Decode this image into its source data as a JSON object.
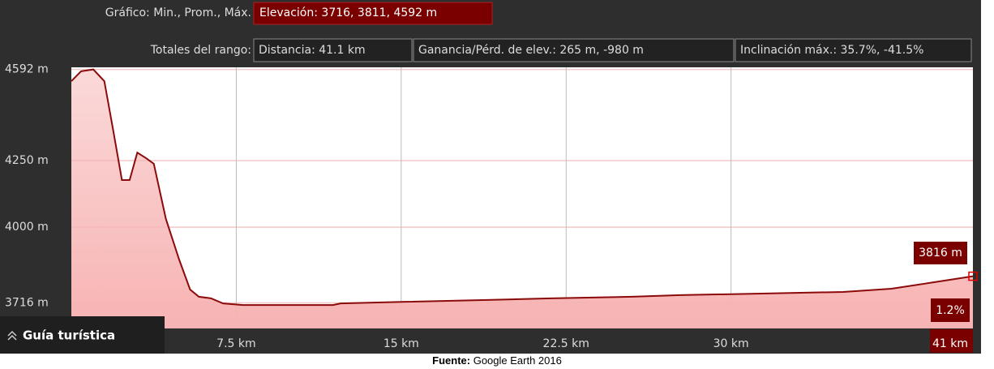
{
  "header": {
    "graph_label": "Gráfico: Min., Prom., Máx.",
    "elevation": "Elevación: 3716, 3811, 4592 m",
    "totals_label": "Totales del rango:",
    "distance": "Distancia: 41.1 km",
    "gain_loss": "Ganancia/Pérd. de elev.: 265 m, -980 m",
    "slope": "Inclinación máx.: 35.7%, -41.5%"
  },
  "chart_data": {
    "type": "area",
    "color": "#8b0a0a",
    "fill": "#f7b3b3",
    "x": [
      0,
      0.44,
      1.0,
      1.5,
      1.9,
      2.3,
      2.65,
      3.0,
      3.4,
      3.75,
      4.3,
      4.9,
      5.4,
      5.8,
      6.35,
      6.9,
      7.8,
      11.9,
      12.25,
      15.2,
      18.9,
      21.8,
      25.5,
      27.7,
      31.4,
      35.1,
      37.3,
      39.2,
      41
    ],
    "values": [
      4548,
      4585,
      4592,
      4548,
      4365,
      4177,
      4177,
      4280,
      4259,
      4238,
      4031,
      3879,
      3766,
      3739,
      3733,
      3714,
      3708,
      3708,
      3714,
      3720,
      3727,
      3733,
      3739,
      3745,
      3751,
      3757,
      3769,
      3793,
      3816
    ],
    "xlim": [
      0,
      41
    ],
    "xticks": [
      {
        "value": 7.5,
        "label": "7.5 km"
      },
      {
        "value": 15,
        "label": "15 km"
      },
      {
        "value": 22.5,
        "label": "22.5 km"
      },
      {
        "value": 30,
        "label": "30 km"
      },
      {
        "value": 41,
        "label": "41 km"
      }
    ],
    "ylim": [
      3620,
      4600
    ],
    "yticks": [
      {
        "value": 3716,
        "label": "3716 m"
      },
      {
        "value": 4000,
        "label": "4000 m"
      },
      {
        "value": 4250,
        "label": "4250 m"
      },
      {
        "value": 4592,
        "label": "4592 m"
      }
    ],
    "grid": true,
    "cursor_label": "3816 m",
    "slope_label": "1.2%"
  },
  "tour_button": "Guía turística",
  "source": {
    "label": "Fuente:",
    "text": "Google Earth 2016"
  }
}
